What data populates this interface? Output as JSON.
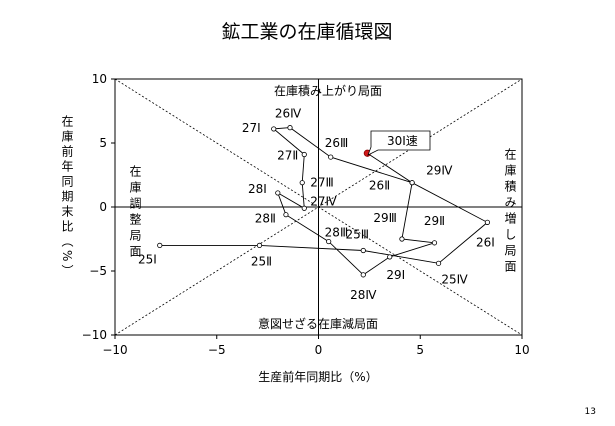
{
  "page_number": "13",
  "chart_data": {
    "type": "line",
    "title": "鉱工業の在庫循環図",
    "xlabel": "生産前年同期比（%）",
    "ylabel": "在庫前年同期末比（%）",
    "xlim": [
      -10,
      10
    ],
    "ylim": [
      -10,
      10
    ],
    "x_ticks": [
      "−10",
      "−5",
      "0",
      "5",
      "10"
    ],
    "y_ticks": [
      "10",
      "5",
      "0",
      "−5",
      "−10"
    ],
    "x_tick_values": [
      -10,
      -5,
      0,
      5,
      10
    ],
    "y_tick_values": [
      10,
      5,
      0,
      -5,
      -10
    ],
    "grid": false,
    "legend": "none",
    "phase_labels": {
      "top": "在庫積み上がり局面",
      "right": "在庫積み増し局面",
      "bottom": "意図せざる在庫減局面",
      "left": "在庫調整局面"
    },
    "callout": "30Ⅰ速",
    "series": [
      {
        "points": [
          {
            "label": "25Ⅰ",
            "x": -7.8,
            "y": -3.0
          },
          {
            "label": "25Ⅱ",
            "x": -2.9,
            "y": -3.0
          },
          {
            "label": "25Ⅲ",
            "x": 2.2,
            "y": -3.4
          },
          {
            "label": "25Ⅳ",
            "x": 5.9,
            "y": -4.4
          },
          {
            "label": "26Ⅰ",
            "x": 8.3,
            "y": -1.2
          },
          {
            "label": "26Ⅱ",
            "x": 4.6,
            "y": 1.9
          },
          {
            "label": "26Ⅲ",
            "x": 0.6,
            "y": 3.9
          },
          {
            "label": "26Ⅳ",
            "x": -1.4,
            "y": 6.2
          },
          {
            "label": "27Ⅰ",
            "x": -2.2,
            "y": 6.1
          },
          {
            "label": "27Ⅱ",
            "x": -0.7,
            "y": 4.1
          },
          {
            "label": "27Ⅲ",
            "x": -0.8,
            "y": 1.9
          },
          {
            "label": "27Ⅳ",
            "x": -0.7,
            "y": -0.1
          },
          {
            "label": "28Ⅰ",
            "x": -2.0,
            "y": 1.1
          },
          {
            "label": "28Ⅱ",
            "x": -1.6,
            "y": -0.6
          },
          {
            "label": "28Ⅲ",
            "x": 0.5,
            "y": -2.7
          },
          {
            "label": "28Ⅳ",
            "x": 2.2,
            "y": -5.3
          },
          {
            "label": "29Ⅰ",
            "x": 3.5,
            "y": -3.9
          },
          {
            "label": "29Ⅱ",
            "x": 5.7,
            "y": -2.8
          },
          {
            "label": "29Ⅲ",
            "x": 4.1,
            "y": -2.5
          },
          {
            "label": "29Ⅳ",
            "x": 4.6,
            "y": 1.9
          },
          {
            "label": "30Ⅰ速",
            "x": 2.4,
            "y": 4.2
          }
        ]
      }
    ]
  }
}
